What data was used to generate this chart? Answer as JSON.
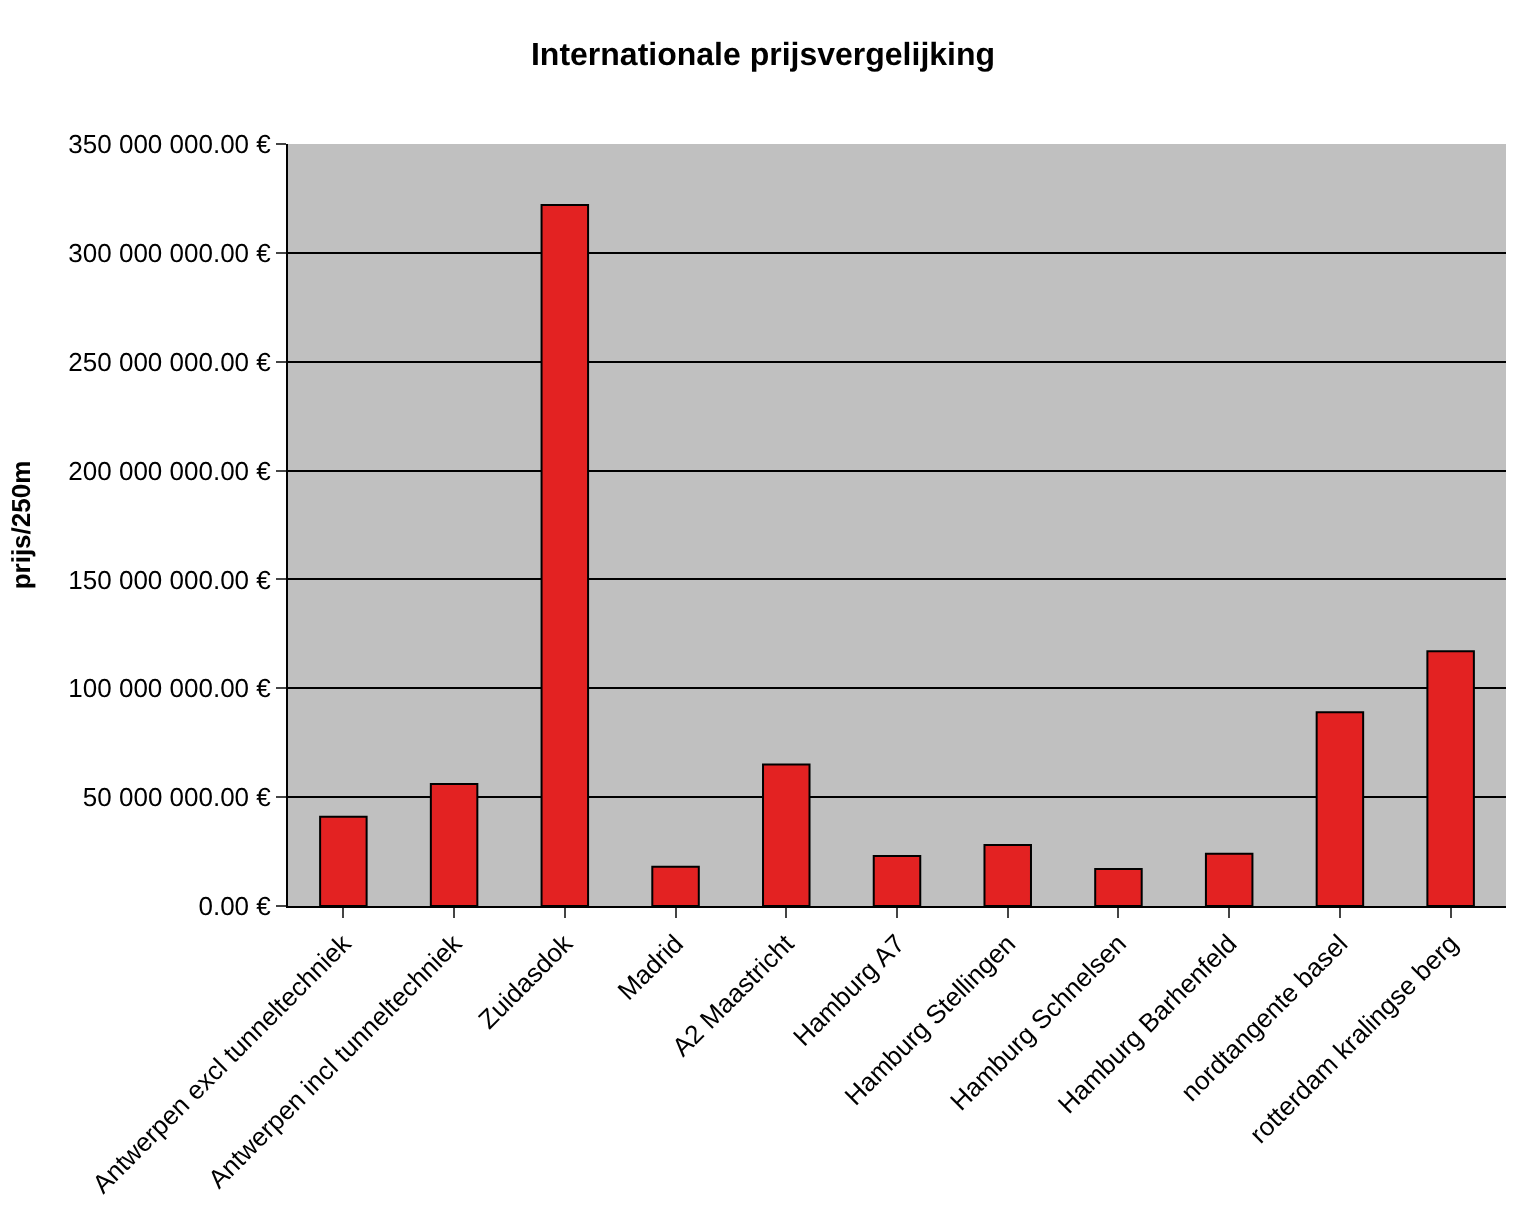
{
  "chart_data": {
    "type": "bar",
    "title": "Internationale prijsvergelijking",
    "ylabel": "prijs/250m",
    "categories": [
      "Antwerpen excl tunneltechniek",
      "Antwerpen incl tunneltechniek",
      "Zuidasdok",
      "Madrid",
      "A2 Maastricht",
      "Hamburg A7",
      "Hamburg Stellingen",
      "Hamburg Schnelsen",
      "Hamburg Barhenfeld",
      "nordtangente basel",
      "rotterdam kralingse berg"
    ],
    "values": [
      41000000,
      56000000,
      322000000,
      18000000,
      65000000,
      23000000,
      28000000,
      17000000,
      24000000,
      89000000,
      117000000
    ],
    "color": "#e32222",
    "ylim": [
      0,
      350000000
    ],
    "yticks": [
      {
        "value": 0,
        "label": "0.00 €"
      },
      {
        "value": 50000000,
        "label": "50 000 000.00 €"
      },
      {
        "value": 100000000,
        "label": "100 000 000.00 €"
      },
      {
        "value": 150000000,
        "label": "150 000 000.00 €"
      },
      {
        "value": 200000000,
        "label": "200 000 000.00 €"
      },
      {
        "value": 250000000,
        "label": "250 000 000.00 €"
      },
      {
        "value": 300000000,
        "label": "300 000 000.00 €"
      },
      {
        "value": 350000000,
        "label": "350 000 000.00 €"
      }
    ],
    "grid": "y",
    "legend": false
  }
}
